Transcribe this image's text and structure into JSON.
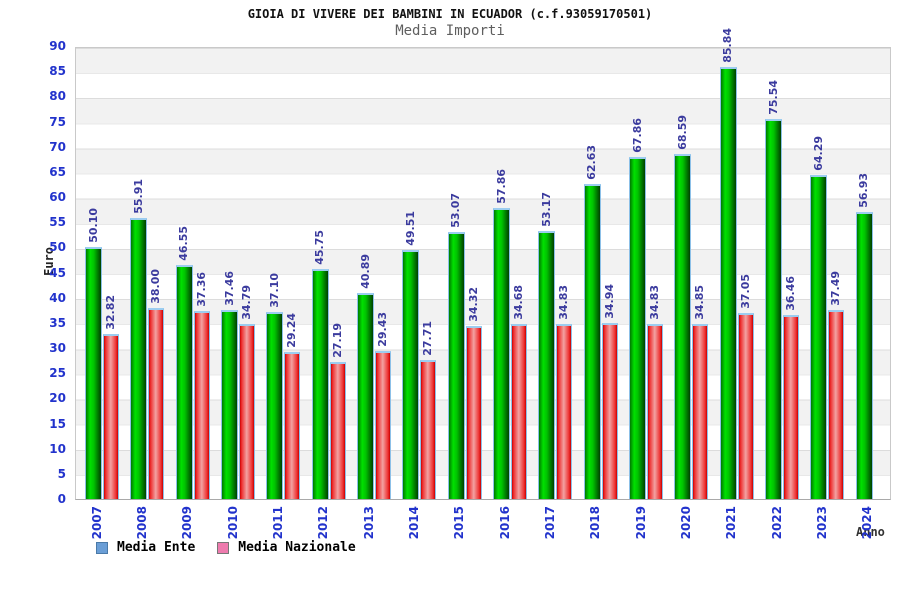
{
  "header": {
    "title": "GIOIA DI VIVERE DEI BAMBINI IN ECUADOR (c.f.93059170501)",
    "subtitle": "Media Importi"
  },
  "axes": {
    "y_label": "Euro",
    "x_label": "Anno"
  },
  "legend": {
    "ente_label": "Media Ente",
    "nazionale_label": "Media Nazionale",
    "ente_color": "#6a9ed6",
    "nazionale_color": "#ee7bae"
  },
  "colors": {
    "bar_green": "#00c400",
    "bar_red": "#ee3030",
    "bar_cap_blue": "#9ccdf0",
    "tick_text_blue": "#2233cc",
    "value_text_blue": "#3b3b9e",
    "band_gray": "#f2f2f2"
  },
  "chart_data": {
    "type": "bar",
    "title": "GIOIA DI VIVERE DEI BAMBINI IN ECUADOR (c.f.93059170501)",
    "subtitle": "Media Importi",
    "xlabel": "Anno",
    "ylabel": "Euro",
    "ylim": [
      0,
      90
    ],
    "ytick_step": 5,
    "grid": true,
    "legend_position": "bottom-left",
    "categories": [
      "2007",
      "2008",
      "2009",
      "2010",
      "2011",
      "2012",
      "2013",
      "2014",
      "2015",
      "2016",
      "2017",
      "2018",
      "2019",
      "2020",
      "2021",
      "2022",
      "2023",
      "2024"
    ],
    "series": [
      {
        "name": "Media Ente",
        "values": [
          50.1,
          55.91,
          46.55,
          37.46,
          37.1,
          45.75,
          40.89,
          49.51,
          53.07,
          57.86,
          53.17,
          62.63,
          67.86,
          68.59,
          85.84,
          75.54,
          64.29,
          56.93
        ]
      },
      {
        "name": "Media Nazionale",
        "values": [
          32.82,
          38.0,
          37.36,
          34.79,
          29.24,
          27.19,
          29.43,
          27.71,
          34.32,
          34.68,
          34.83,
          34.94,
          34.83,
          34.85,
          37.05,
          36.46,
          37.49,
          null
        ]
      }
    ],
    "value_labels": {
      "Media Ente": [
        "50.10",
        "55.91",
        "46.55",
        "37.46",
        "37.10",
        "45.75",
        "40.89",
        "49.51",
        "53.07",
        "57.86",
        "53.17",
        "62.63",
        "67.86",
        "68.59",
        "85.84",
        "75.54",
        "64.29",
        "56.93"
      ],
      "Media Nazionale": [
        "32.82",
        "38.00",
        "37.36",
        "34.79",
        "29.24",
        "27.19",
        "29.43",
        "27.71",
        "34.32",
        "34.68",
        "34.83",
        "34.94",
        "34.83",
        "34.85",
        "37.05",
        "36.46",
        "37.49",
        null
      ]
    }
  }
}
